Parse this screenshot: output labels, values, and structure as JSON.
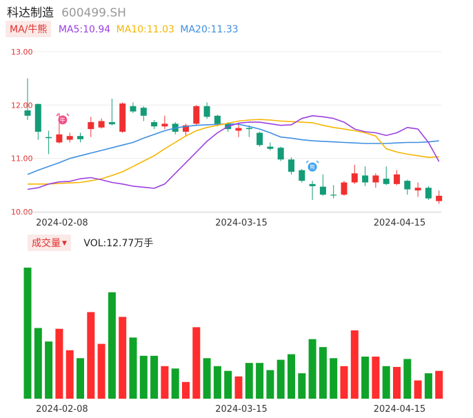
{
  "header": {
    "name": "科达制造",
    "code": "600499.SH"
  },
  "ma": {
    "button": "MA/牛熊",
    "items": [
      {
        "label": "MA5:10.94",
        "color": "#9b3fe0"
      },
      {
        "label": "MA10:11.03",
        "color": "#f6b500"
      },
      {
        "label": "MA20:11.33",
        "color": "#3e8fe0"
      }
    ]
  },
  "volume": {
    "button": "成交量",
    "label": "VOL:12.77万手"
  },
  "colors": {
    "up": "#f03030",
    "down": "#139c77",
    "vol_up": "#ff2d2d",
    "vol_down": "#10a32a",
    "axis_label": "#e03030"
  },
  "icons": [
    "bull-icon",
    "bear-icon",
    "caret-down-icon"
  ],
  "chart_data": {
    "type": "candlestick",
    "price_axis": {
      "ylim": [
        10.0,
        13.0
      ],
      "ticks": [
        "13.00",
        "12.00",
        "11.00",
        "10.00"
      ]
    },
    "x_ticks": [
      {
        "label": "2024-02-08",
        "index": 3
      },
      {
        "label": "2024-03-15",
        "index": 20
      },
      {
        "label": "2024-04-15",
        "index": 35
      }
    ],
    "markers": [
      {
        "type": "bull",
        "index": 3,
        "text": "牛"
      },
      {
        "type": "bear",
        "index": 27,
        "text": "熊"
      }
    ],
    "candles": [
      {
        "o": 11.9,
        "c": 11.8,
        "h": 12.5,
        "l": 11.72
      },
      {
        "o": 12.02,
        "c": 11.5,
        "h": 12.03,
        "l": 11.35
      },
      {
        "o": 11.4,
        "c": 11.38,
        "h": 11.52,
        "l": 11.08
      },
      {
        "o": 11.3,
        "c": 11.45,
        "h": 11.85,
        "l": 11.28
      },
      {
        "o": 11.35,
        "c": 11.42,
        "h": 11.48,
        "l": 11.3
      },
      {
        "o": 11.42,
        "c": 11.36,
        "h": 11.48,
        "l": 11.3
      },
      {
        "o": 11.55,
        "c": 11.68,
        "h": 11.78,
        "l": 11.4
      },
      {
        "o": 11.58,
        "c": 11.7,
        "h": 11.75,
        "l": 11.56
      },
      {
        "o": 11.68,
        "c": 11.64,
        "h": 12.12,
        "l": 11.62
      },
      {
        "o": 11.5,
        "c": 12.03,
        "h": 12.05,
        "l": 11.48
      },
      {
        "o": 11.98,
        "c": 11.88,
        "h": 12.05,
        "l": 11.85
      },
      {
        "o": 11.95,
        "c": 11.8,
        "h": 11.98,
        "l": 11.7
      },
      {
        "o": 11.68,
        "c": 11.6,
        "h": 11.72,
        "l": 11.55
      },
      {
        "o": 11.6,
        "c": 11.65,
        "h": 11.8,
        "l": 11.55
      },
      {
        "o": 11.65,
        "c": 11.5,
        "h": 11.68,
        "l": 11.45
      },
      {
        "o": 11.5,
        "c": 11.62,
        "h": 11.65,
        "l": 11.42
      },
      {
        "o": 11.65,
        "c": 11.98,
        "h": 12.0,
        "l": 11.62
      },
      {
        "o": 11.98,
        "c": 11.78,
        "h": 12.05,
        "l": 11.74
      },
      {
        "o": 11.8,
        "c": 11.65,
        "h": 11.82,
        "l": 11.6
      },
      {
        "o": 11.65,
        "c": 11.55,
        "h": 11.68,
        "l": 11.5
      },
      {
        "o": 11.52,
        "c": 11.57,
        "h": 11.65,
        "l": 11.4
      },
      {
        "o": 11.57,
        "c": 11.55,
        "h": 11.62,
        "l": 11.4
      },
      {
        "o": 11.48,
        "c": 11.25,
        "h": 11.5,
        "l": 11.22
      },
      {
        "o": 11.22,
        "c": 11.18,
        "h": 11.3,
        "l": 11.15
      },
      {
        "o": 11.2,
        "c": 10.98,
        "h": 11.22,
        "l": 10.95
      },
      {
        "o": 10.98,
        "c": 10.75,
        "h": 11.02,
        "l": 10.7
      },
      {
        "o": 10.78,
        "c": 10.58,
        "h": 10.8,
        "l": 10.55
      },
      {
        "o": 10.52,
        "c": 10.48,
        "h": 10.58,
        "l": 10.22
      },
      {
        "o": 10.47,
        "c": 10.32,
        "h": 10.7,
        "l": 10.3
      },
      {
        "o": 10.32,
        "c": 10.31,
        "h": 10.5,
        "l": 10.25
      },
      {
        "o": 10.32,
        "c": 10.55,
        "h": 10.58,
        "l": 10.3
      },
      {
        "o": 10.55,
        "c": 10.72,
        "h": 10.88,
        "l": 10.52
      },
      {
        "o": 10.68,
        "c": 10.55,
        "h": 10.85,
        "l": 10.48
      },
      {
        "o": 10.55,
        "c": 10.68,
        "h": 10.72,
        "l": 10.45
      },
      {
        "o": 10.62,
        "c": 10.52,
        "h": 10.85,
        "l": 10.5
      },
      {
        "o": 10.52,
        "c": 10.7,
        "h": 10.78,
        "l": 10.5
      },
      {
        "o": 10.58,
        "c": 10.42,
        "h": 10.6,
        "l": 10.32
      },
      {
        "o": 10.4,
        "c": 10.45,
        "h": 10.55,
        "l": 10.28
      },
      {
        "o": 10.45,
        "c": 10.25,
        "h": 10.48,
        "l": 10.22
      },
      {
        "o": 10.2,
        "c": 10.3,
        "h": 10.4,
        "l": 10.15
      }
    ],
    "ma5": [
      10.42,
      10.45,
      10.52,
      10.56,
      10.57,
      10.62,
      10.64,
      10.6,
      10.55,
      10.52,
      10.48,
      10.46,
      10.44,
      10.52,
      10.72,
      10.92,
      11.12,
      11.32,
      11.48,
      11.6,
      11.66,
      11.68,
      11.68,
      11.65,
      11.62,
      11.63,
      11.75,
      11.8,
      11.78,
      11.75,
      11.68,
      11.55,
      11.5,
      11.48,
      11.43,
      11.48,
      11.58,
      11.55,
      11.3,
      10.94
    ],
    "ma10": [
      10.52,
      10.52,
      10.52,
      10.53,
      10.54,
      10.55,
      10.58,
      10.62,
      10.68,
      10.75,
      10.85,
      10.95,
      11.05,
      11.18,
      11.3,
      11.42,
      11.52,
      11.58,
      11.62,
      11.66,
      11.7,
      11.72,
      11.73,
      11.72,
      11.7,
      11.69,
      11.68,
      11.67,
      11.62,
      11.58,
      11.55,
      11.52,
      11.48,
      11.42,
      11.18,
      11.12,
      11.08,
      11.05,
      11.02,
      11.03
    ],
    "ma20": [
      10.7,
      10.78,
      10.85,
      10.92,
      11.0,
      11.05,
      11.1,
      11.15,
      11.2,
      11.25,
      11.3,
      11.38,
      11.45,
      11.52,
      11.57,
      11.6,
      11.62,
      11.63,
      11.64,
      11.65,
      11.64,
      11.6,
      11.55,
      11.48,
      11.4,
      11.38,
      11.35,
      11.33,
      11.32,
      11.31,
      11.3,
      11.29,
      11.28,
      11.28,
      11.28,
      11.29,
      11.3,
      11.3,
      11.31,
      11.33
    ],
    "volumes": [
      16.5,
      8.9,
      7.2,
      8.8,
      6.1,
      5.1,
      10.9,
      6.9,
      13.4,
      10.3,
      7.7,
      5.4,
      5.4,
      4.1,
      3.8,
      2.1,
      9.0,
      5.1,
      4.1,
      3.5,
      2.8,
      4.5,
      4.5,
      3.6,
      4.9,
      5.6,
      3.2,
      7.5,
      6.5,
      5.1,
      4.1,
      8.6,
      5.3,
      5.3,
      4.1,
      4.0,
      5.0,
      2.3,
      3.2,
      3.5
    ]
  }
}
